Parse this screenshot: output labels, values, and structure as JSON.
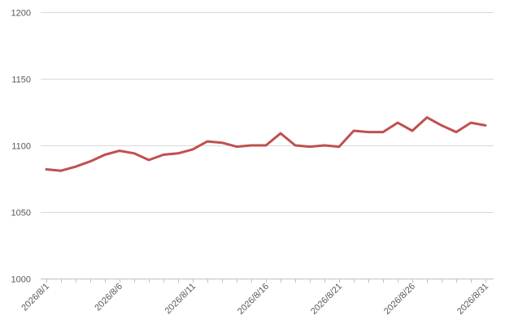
{
  "chart_data": {
    "type": "line",
    "title": "",
    "xlabel": "",
    "ylabel": "",
    "ylim": [
      1000,
      1200
    ],
    "yticks": [
      1000,
      1050,
      1100,
      1150,
      1200
    ],
    "grid": true,
    "legend": "none",
    "line_color": "#c0504d",
    "x": [
      "2026/8/1",
      "2026/8/2",
      "2026/8/3",
      "2026/8/4",
      "2026/8/5",
      "2026/8/6",
      "2026/8/7",
      "2026/8/8",
      "2026/8/9",
      "2026/8/10",
      "2026/8/11",
      "2026/8/12",
      "2026/8/13",
      "2026/8/14",
      "2026/8/15",
      "2026/8/16",
      "2026/8/17",
      "2026/8/18",
      "2026/8/19",
      "2026/8/20",
      "2026/8/21",
      "2026/8/22",
      "2026/8/23",
      "2026/8/24",
      "2026/8/25",
      "2026/8/26",
      "2026/8/27",
      "2026/8/28",
      "2026/8/29",
      "2026/8/30",
      "2026/8/31"
    ],
    "xtick_labels": [
      "2026/8/1",
      "2026/8/6",
      "2026/8/11",
      "2026/8/16",
      "2026/8/21",
      "2026/8/26",
      "2026/8/31"
    ],
    "series": [
      {
        "values": [
          1082,
          1081,
          1084,
          1088,
          1093,
          1096,
          1094,
          1089,
          1093,
          1094,
          1097,
          1103,
          1102,
          1099,
          1100,
          1100,
          1109,
          1100,
          1099,
          1100,
          1099,
          1111,
          1110,
          1110,
          1117,
          1111,
          1121,
          1115,
          1110,
          1117,
          1115
        ]
      }
    ]
  }
}
